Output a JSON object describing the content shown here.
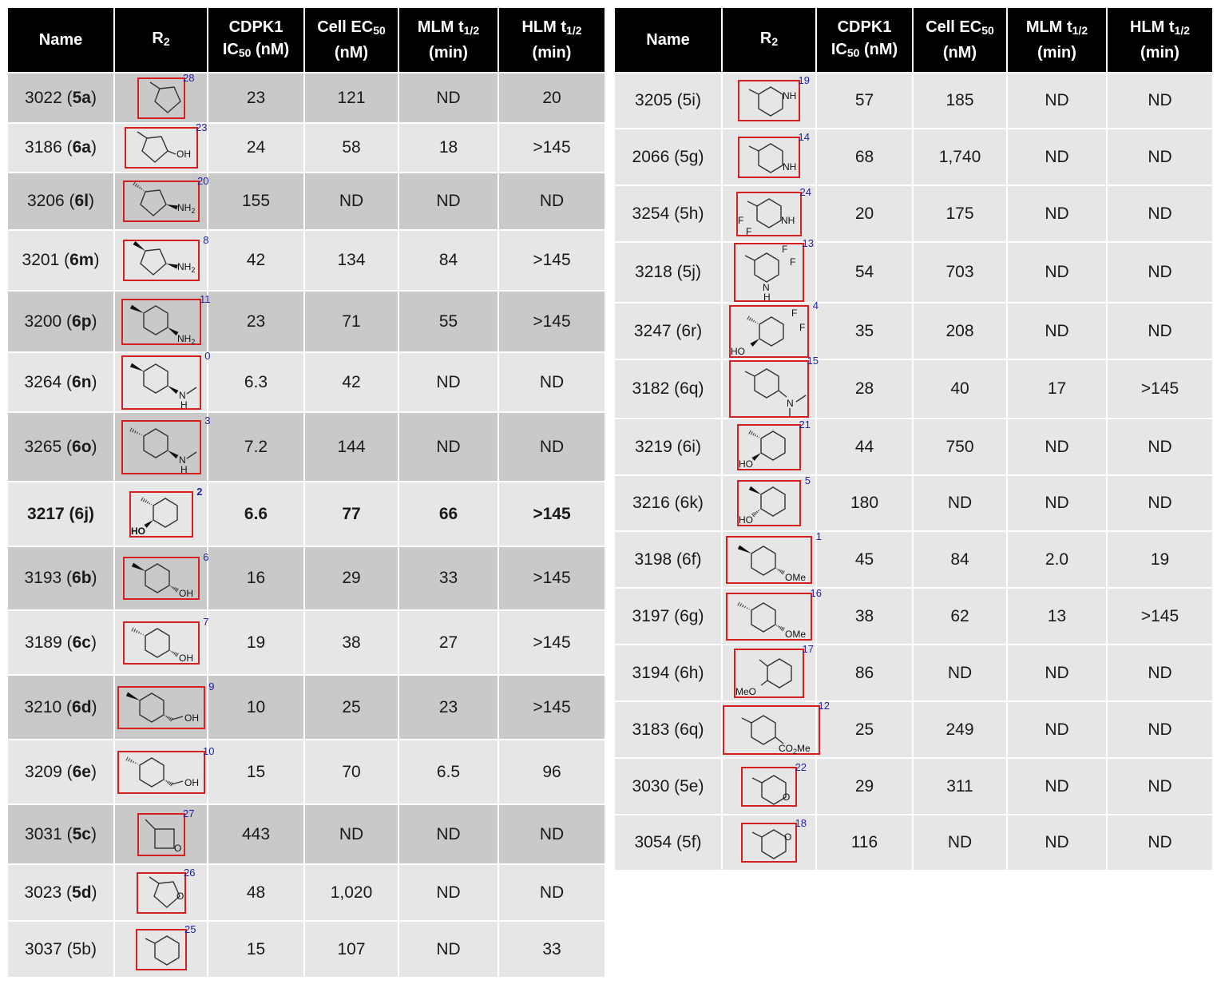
{
  "headers": {
    "name": "Name",
    "r2_main": "R",
    "r2_sub": "2",
    "cdpk1_top": "CDPK1",
    "cdpk1_bottom_pre": "IC",
    "cdpk1_bottom_sub": "50",
    "cdpk1_bottom_post": " (nM)",
    "cell_top_pre": "Cell EC",
    "cell_top_sub": "50",
    "cell_bottom": "(nM)",
    "mlm_top_pre": "MLM t",
    "mlm_top_sub": "1/2",
    "mlm_bottom": "(min)",
    "hlm_top_pre": "HLM t",
    "hlm_top_sub": "1/2",
    "hlm_bottom": "(min)"
  },
  "left_rows": [
    {
      "id": "3022",
      "code": "5a",
      "code_bold": true,
      "tag": "28",
      "struct": "cyclopentyl",
      "cdpk1": "23",
      "cell": "121",
      "mlm": "ND",
      "hlm": "20",
      "shade": "dark",
      "row_bold": false
    },
    {
      "id": "3186",
      "code": "6a",
      "code_bold": true,
      "tag": "23",
      "struct": "cyclopentyl-3-OH",
      "cdpk1": "24",
      "cell": "58",
      "mlm": "18",
      "hlm": ">145",
      "shade": "light",
      "row_bold": false
    },
    {
      "id": "3206",
      "code": "6l",
      "code_bold": true,
      "tag": "20",
      "struct": "cyclopentyl-NH2-hash",
      "cdpk1": "155",
      "cell": "ND",
      "mlm": "ND",
      "hlm": "ND",
      "shade": "dark",
      "row_bold": false
    },
    {
      "id": "3201",
      "code": "6m",
      "code_bold": true,
      "tag": "8",
      "struct": "cyclopentyl-NH2-wedge",
      "cdpk1": "42",
      "cell": "134",
      "mlm": "84",
      "hlm": ">145",
      "shade": "light",
      "row_bold": false
    },
    {
      "id": "3200",
      "code": "6p",
      "code_bold": true,
      "tag": "11",
      "struct": "cyclohexyl-NH2",
      "cdpk1": "23",
      "cell": "71",
      "mlm": "55",
      "hlm": ">145",
      "shade": "dark",
      "row_bold": false
    },
    {
      "id": "3264",
      "code": "6n",
      "code_bold": true,
      "tag": "0",
      "struct": "cyclohexyl-NHMe-wedge",
      "cdpk1": "6.3",
      "cell": "42",
      "mlm": "ND",
      "hlm": "ND",
      "shade": "light",
      "row_bold": false
    },
    {
      "id": "3265",
      "code": "6o",
      "code_bold": true,
      "tag": "3",
      "struct": "cyclohexyl-NHMe-hash",
      "cdpk1": "7.2",
      "cell": "144",
      "mlm": "ND",
      "hlm": "ND",
      "shade": "dark",
      "row_bold": false
    },
    {
      "id": "3217",
      "code": "6j",
      "code_bold": true,
      "tag": "2",
      "struct": "cyclohexyl-2-OH-hash",
      "cdpk1": "6.6",
      "cell": "77",
      "mlm": "66",
      "hlm": ">145",
      "shade": "light",
      "row_bold": true
    },
    {
      "id": "3193",
      "code": "6b",
      "code_bold": true,
      "tag": "6",
      "struct": "cyclohexyl-4-OH-wedge",
      "cdpk1": "16",
      "cell": "29",
      "mlm": "33",
      "hlm": ">145",
      "shade": "dark",
      "row_bold": false
    },
    {
      "id": "3189",
      "code": "6c",
      "code_bold": true,
      "tag": "7",
      "struct": "cyclohexyl-4-OH-hash",
      "cdpk1": "19",
      "cell": "38",
      "mlm": "27",
      "hlm": ">145",
      "shade": "light",
      "row_bold": false
    },
    {
      "id": "3210",
      "code": "6d",
      "code_bold": true,
      "tag": "9",
      "struct": "cyclohexyl-CH2OH-wedge",
      "cdpk1": "10",
      "cell": "25",
      "mlm": "23",
      "hlm": ">145",
      "shade": "dark",
      "row_bold": false
    },
    {
      "id": "3209",
      "code": "6e",
      "code_bold": true,
      "tag": "10",
      "struct": "cyclohexyl-CH2OH-hash",
      "cdpk1": "15",
      "cell": "70",
      "mlm": "6.5",
      "hlm": "96",
      "shade": "light",
      "row_bold": false
    },
    {
      "id": "3031",
      "code": "5c",
      "code_bold": true,
      "tag": "27",
      "struct": "oxetanyl",
      "cdpk1": "443",
      "cell": "ND",
      "mlm": "ND",
      "hlm": "ND",
      "shade": "dark",
      "row_bold": false
    },
    {
      "id": "3023",
      "code": "5d",
      "code_bold": true,
      "tag": "26",
      "struct": "tetrahydrofuranyl",
      "cdpk1": "48",
      "cell": "1,020",
      "mlm": "ND",
      "hlm": "ND",
      "shade": "light",
      "row_bold": false
    },
    {
      "id": "3037",
      "code": "5b",
      "code_bold": false,
      "tag": "25",
      "struct": "cyclohexyl",
      "cdpk1": "15",
      "cell": "107",
      "mlm": "ND",
      "hlm": "33",
      "shade": "light",
      "row_bold": false
    }
  ],
  "right_rows": [
    {
      "id": "3205",
      "code": "5i",
      "code_bold": false,
      "tag": "19",
      "struct": "piperidin-3-yl",
      "cdpk1": "57",
      "cell": "185",
      "mlm": "ND",
      "hlm": "ND",
      "shade": "light",
      "row_bold": false
    },
    {
      "id": "2066",
      "code": "5g",
      "code_bold": false,
      "tag": "14",
      "struct": "piperidin-4-yl",
      "cdpk1": "68",
      "cell": "1,740",
      "mlm": "ND",
      "hlm": "ND",
      "shade": "light",
      "row_bold": false
    },
    {
      "id": "3254",
      "code": "5h",
      "code_bold": false,
      "tag": "24",
      "struct": "difluoro-piperidin-4-yl",
      "cdpk1": "20",
      "cell": "175",
      "mlm": "ND",
      "hlm": "ND",
      "shade": "light",
      "row_bold": false
    },
    {
      "id": "3218",
      "code": "5j",
      "code_bold": false,
      "tag": "13",
      "struct": "difluoro-piperidin-3-yl",
      "cdpk1": "54",
      "cell": "703",
      "mlm": "ND",
      "hlm": "ND",
      "shade": "light",
      "row_bold": false
    },
    {
      "id": "3247",
      "code": "6r",
      "code_bold": false,
      "tag": "4",
      "struct": "difluoro-hydroxy-cyclohexyl",
      "cdpk1": "35",
      "cell": "208",
      "mlm": "ND",
      "hlm": "ND",
      "shade": "light",
      "row_bold": false
    },
    {
      "id": "3182",
      "code": "6q",
      "code_bold": false,
      "tag": "15",
      "struct": "cyclohexyl-NMe2",
      "cdpk1": "28",
      "cell": "40",
      "mlm": "17",
      "hlm": ">145",
      "shade": "light",
      "row_bold": false
    },
    {
      "id": "3219",
      "code": "6i",
      "code_bold": false,
      "tag": "21",
      "struct": "cyclohexyl-2-OH-trans",
      "cdpk1": "44",
      "cell": "750",
      "mlm": "ND",
      "hlm": "ND",
      "shade": "light",
      "row_bold": false
    },
    {
      "id": "3216",
      "code": "6k",
      "code_bold": false,
      "tag": "5",
      "struct": "cyclohexyl-2-OH-cis",
      "cdpk1": "180",
      "cell": "ND",
      "mlm": "ND",
      "hlm": "ND",
      "shade": "light",
      "row_bold": false
    },
    {
      "id": "3198",
      "code": "6f",
      "code_bold": false,
      "tag": "1",
      "struct": "cyclohexyl-OMe-wedge",
      "cdpk1": "45",
      "cell": "84",
      "mlm": "2.0",
      "hlm": "19",
      "shade": "light",
      "row_bold": false
    },
    {
      "id": "3197",
      "code": "6g",
      "code_bold": false,
      "tag": "16",
      "struct": "cyclohexyl-OMe-hash",
      "cdpk1": "38",
      "cell": "62",
      "mlm": "13",
      "hlm": ">145",
      "shade": "light",
      "row_bold": false
    },
    {
      "id": "3194",
      "code": "6h",
      "code_bold": false,
      "tag": "17",
      "struct": "cyclohexyl-2-OMe",
      "cdpk1": "86",
      "cell": "ND",
      "mlm": "ND",
      "hlm": "ND",
      "shade": "light",
      "row_bold": false
    },
    {
      "id": "3183",
      "code": "6q",
      "code_bold": false,
      "tag": "12",
      "struct": "cyclohexyl-CO2Me",
      "cdpk1": "25",
      "cell": "249",
      "mlm": "ND",
      "hlm": "ND",
      "shade": "light",
      "row_bold": false
    },
    {
      "id": "3030",
      "code": "5e",
      "code_bold": false,
      "tag": "22",
      "struct": "tetrahydropyran-4-yl",
      "cdpk1": "29",
      "cell": "311",
      "mlm": "ND",
      "hlm": "ND",
      "shade": "light",
      "row_bold": false
    },
    {
      "id": "3054",
      "code": "5f",
      "code_bold": false,
      "tag": "18",
      "struct": "tetrahydropyran-3-yl",
      "cdpk1": "116",
      "cell": "ND",
      "mlm": "ND",
      "hlm": "ND",
      "shade": "light",
      "row_bold": false
    }
  ],
  "structure_labels": {
    "oh": "OH",
    "ho": "HO",
    "nh2": "NH",
    "nh2_sub": "2",
    "n": "N",
    "h": "H",
    "nh": "NH",
    "f": "F",
    "ome": "OMe",
    "meo": "MeO",
    "co2me_pre": "CO",
    "co2me_sub": "2",
    "co2me_post": "Me",
    "o": "O"
  },
  "colors": {
    "header_bg": "#000000",
    "header_text": "#ffffff",
    "row_dark": "#c9c9c9",
    "row_light": "#e6e6e6",
    "structure_box": "#d42020",
    "tag_number": "#1f1fa6"
  }
}
